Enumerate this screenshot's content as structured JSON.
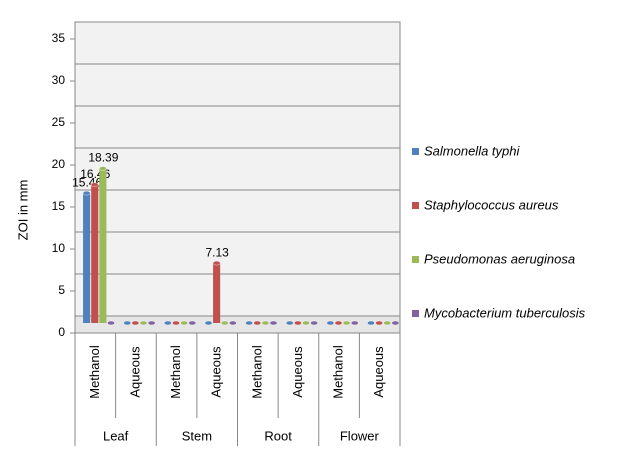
{
  "chart_data": {
    "type": "bar",
    "y_label": "ZOI in mm",
    "categories": [
      "Methanol",
      "Aqueous",
      "Methanol",
      "Aqueous",
      "Methanol",
      "Aqueous",
      "Methanol",
      "Aqueous"
    ],
    "groups": [
      "Leaf",
      "Stem",
      "Root",
      "Flower"
    ],
    "series": [
      {
        "name": "Salmonella typhi",
        "color": "#4f81bd",
        "values": [
          15.46,
          0,
          0,
          0,
          0,
          0,
          0,
          0
        ]
      },
      {
        "name": "Staphylococcus aureus",
        "color": "#c0504d",
        "values": [
          16.46,
          0,
          0,
          7.13,
          0,
          0,
          0,
          0
        ]
      },
      {
        "name": "Pseudomonas aeruginosa",
        "color": "#9bbb59",
        "values": [
          18.39,
          0,
          0,
          0,
          0,
          0,
          0,
          0
        ]
      },
      {
        "name": "Mycobacterium tuberculosis",
        "color": "#8064a2",
        "values": [
          0,
          0,
          0,
          0,
          0,
          0,
          0,
          0
        ]
      }
    ],
    "ylim": [
      0,
      35
    ],
    "yticks": [
      0,
      5,
      10,
      15,
      20,
      25,
      30,
      35
    ],
    "grid": true,
    "legend": "right"
  }
}
